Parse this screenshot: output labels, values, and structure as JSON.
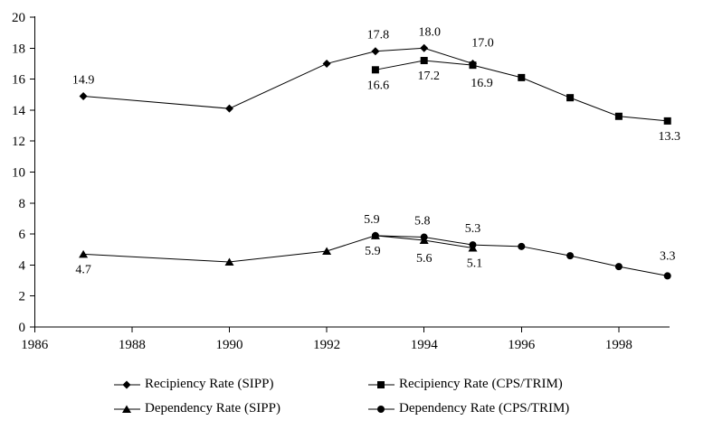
{
  "figure": {
    "title": "",
    "background_color": "#ffffff",
    "foreground_color": "#000000"
  },
  "chart_data": {
    "type": "line",
    "title": "",
    "xlabel": "",
    "ylabel": "",
    "grid": false,
    "xlim": [
      1986,
      1999.1
    ],
    "ylim": [
      0,
      20
    ],
    "x_tick_values": [
      1986,
      1988,
      1990,
      1992,
      1994,
      1996,
      1998
    ],
    "x_tick_labels": [
      "1986",
      "1988",
      "1990",
      "1992",
      "1994",
      "1996",
      "1998"
    ],
    "y_tick_values": [
      0,
      2,
      4,
      6,
      8,
      10,
      12,
      14,
      16,
      18,
      20
    ],
    "y_tick_labels": [
      "0",
      "2",
      "4",
      "6",
      "8",
      "10",
      "12",
      "14",
      "16",
      "18",
      "20"
    ],
    "legend_position": "bottom",
    "series": [
      {
        "name": "Recipiency Rate (SIPP)",
        "marker": "diamond",
        "color": "#000000",
        "x": [
          1987,
          1990,
          1992,
          1993,
          1994,
          1995
        ],
        "y": [
          14.9,
          14.1,
          17.0,
          17.8,
          18.0,
          17.0
        ],
        "labels": [
          {
            "x": 1987,
            "text": "14.9",
            "pos": "above"
          },
          {
            "x": 1993,
            "text": "17.8",
            "pos": "above",
            "dx": 3
          },
          {
            "x": 1994,
            "text": "18.0",
            "pos": "above",
            "dx": 6
          },
          {
            "x": 1995,
            "text": "17.0",
            "pos": "above",
            "dx": 11,
            "dy": -5
          }
        ]
      },
      {
        "name": "Recipiency Rate (CPS/TRIM)",
        "marker": "square",
        "color": "#000000",
        "x": [
          1993,
          1994,
          1995,
          1996,
          1997,
          1998,
          1999
        ],
        "y": [
          16.6,
          17.2,
          16.9,
          16.1,
          14.8,
          13.6,
          13.3
        ],
        "labels": [
          {
            "x": 1993,
            "text": "16.6",
            "pos": "below",
            "dx": 3
          },
          {
            "x": 1994,
            "text": "17.2",
            "pos": "below",
            "dx": 5
          },
          {
            "x": 1995,
            "text": "16.9",
            "pos": "below",
            "dx": 10,
            "dy": 3
          },
          {
            "x": 1999,
            "text": "13.3",
            "pos": "below",
            "dx": 2
          }
        ]
      },
      {
        "name": "Dependency Rate (SIPP)",
        "marker": "triangle",
        "color": "#000000",
        "x": [
          1987,
          1990,
          1992,
          1993,
          1994,
          1995
        ],
        "y": [
          4.7,
          4.2,
          4.9,
          5.9,
          5.6,
          5.1
        ],
        "labels": [
          {
            "x": 1987,
            "text": "4.7",
            "pos": "below"
          },
          {
            "x": 1993,
            "text": "5.9",
            "pos": "below",
            "dx": -3
          },
          {
            "x": 1994,
            "text": "5.6",
            "pos": "below",
            "dy": 3
          },
          {
            "x": 1995,
            "text": "5.1",
            "pos": "below",
            "dx": 2
          }
        ]
      },
      {
        "name": "Dependency Rate (CPS/TRIM)",
        "marker": "circle",
        "color": "#000000",
        "x": [
          1993,
          1994,
          1995,
          1996,
          1997,
          1998,
          1999
        ],
        "y": [
          5.9,
          5.8,
          5.3,
          5.2,
          4.6,
          3.9,
          3.3
        ],
        "labels": [
          {
            "x": 1993,
            "text": "5.9",
            "pos": "above",
            "dx": -4
          },
          {
            "x": 1994,
            "text": "5.8",
            "pos": "above",
            "dx": -2
          },
          {
            "x": 1995,
            "text": "5.3",
            "pos": "above"
          },
          {
            "x": 1999,
            "text": "3.3",
            "pos": "above",
            "dy": -4
          }
        ]
      }
    ],
    "legend_entries": [
      "Recipiency Rate (SIPP)",
      "Recipiency Rate (CPS/TRIM)",
      "Dependency Rate (SIPP)",
      "Dependency Rate (CPS/TRIM)"
    ]
  }
}
